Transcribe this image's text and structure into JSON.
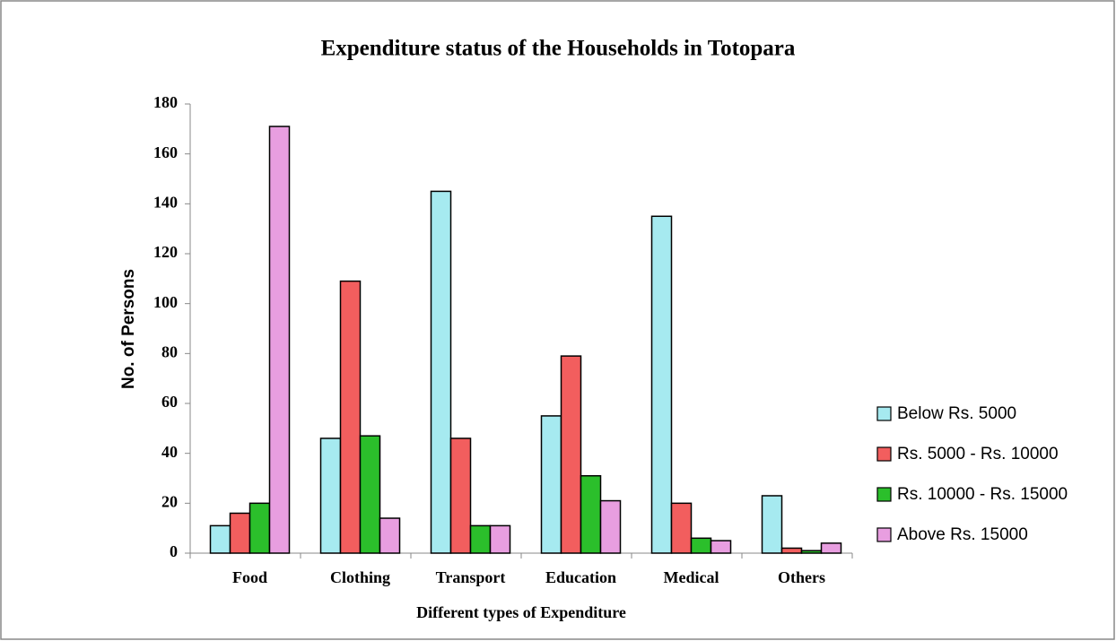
{
  "chart_data": {
    "type": "bar",
    "title": "Expenditure status of the Households in Totopara",
    "xlabel": "Different types of Expenditure",
    "ylabel": "No. of Persons",
    "categories": [
      "Food",
      "Clothing",
      "Transport",
      "Education",
      "Medical",
      "Others"
    ],
    "series": [
      {
        "name": "Below Rs. 5000",
        "color": "#a6eaf0",
        "values": [
          11,
          46,
          145,
          55,
          135,
          23
        ]
      },
      {
        "name": "Rs. 5000 - Rs. 10000",
        "color": "#f25e5e",
        "values": [
          16,
          109,
          46,
          79,
          20,
          2
        ]
      },
      {
        "name": "Rs. 10000 - Rs. 15000",
        "color": "#2bbf2b",
        "values": [
          20,
          47,
          11,
          31,
          6,
          1
        ]
      },
      {
        "name": "Above Rs. 15000",
        "color": "#e89ee0",
        "values": [
          171,
          14,
          11,
          21,
          5,
          4
        ]
      }
    ],
    "ylim": [
      0,
      180
    ],
    "yticks": [
      0,
      20,
      40,
      60,
      80,
      100,
      120,
      140,
      160,
      180
    ],
    "legend": "right"
  }
}
